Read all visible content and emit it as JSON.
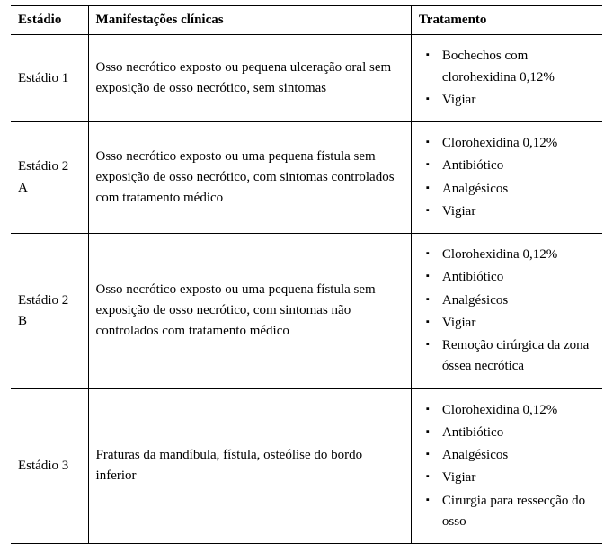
{
  "table": {
    "headers": {
      "stage": "Estádio",
      "clinical": "Manifestações clínicas",
      "treatment": "Tratamento"
    },
    "rows": [
      {
        "stage": "Estádio 1",
        "clinical": "Osso necrótico exposto ou pequena ulceração oral sem exposição de osso necrótico, sem sintomas",
        "treatments": [
          "Bochechos com clorohexidina 0,12%",
          "Vigiar"
        ]
      },
      {
        "stage": "Estádio 2 A",
        "clinical": "Osso necrótico exposto ou uma pequena fístula sem exposição de osso necrótico, com sintomas controlados com tratamento médico",
        "treatments": [
          "Clorohexidina 0,12%",
          "Antibiótico",
          "Analgésicos",
          "Vigiar"
        ]
      },
      {
        "stage": "Estádio 2 B",
        "clinical": "Osso necrótico exposto ou uma pequena fístula sem exposição de osso necrótico, com sintomas não controlados com tratamento médico",
        "treatments": [
          "Clorohexidina 0,12%",
          "Antibiótico",
          "Analgésicos",
          "Vigiar",
          "Remoção cirúrgica da zona óssea necrótica"
        ]
      },
      {
        "stage": "Estádio 3",
        "clinical": "Fraturas da mandíbula, fístula, osteólise do bordo inferior",
        "treatments": [
          "Clorohexidina 0,12%",
          "Antibiótico",
          "Analgésicos",
          "Vigiar",
          "Cirurgia para ressecção do osso"
        ]
      }
    ]
  }
}
